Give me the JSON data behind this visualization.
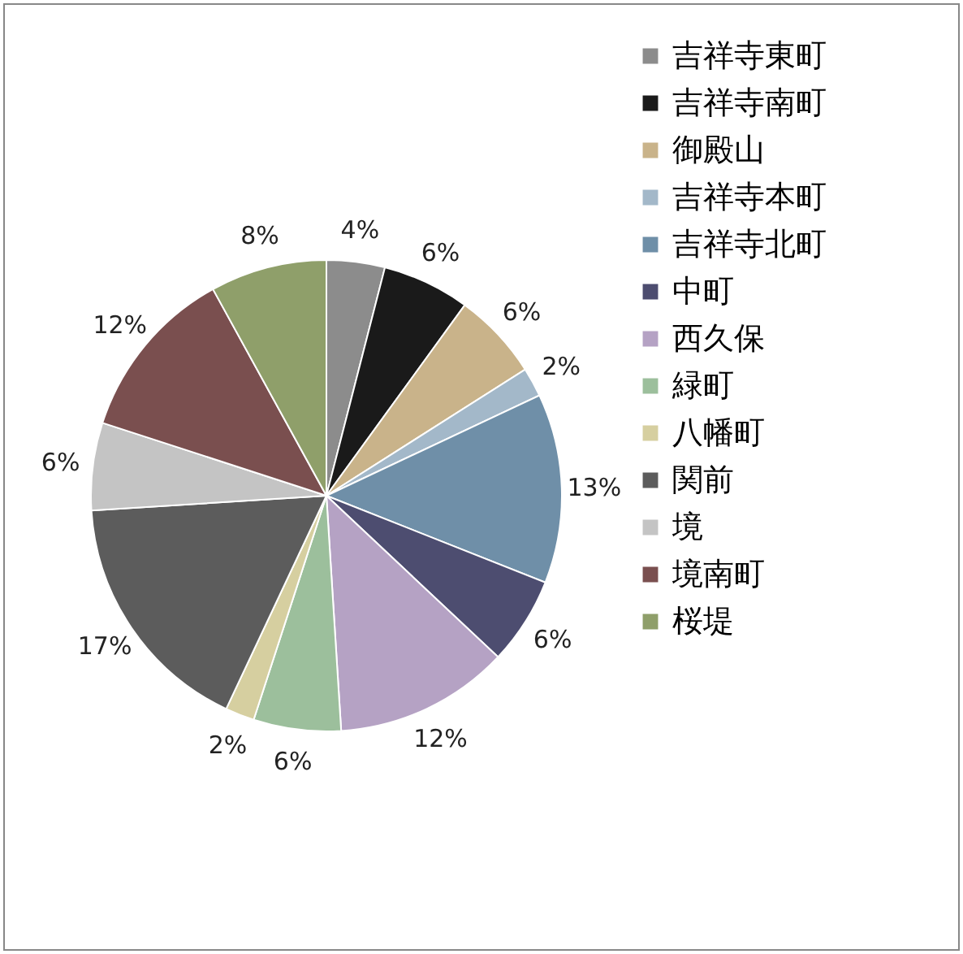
{
  "chart_data": {
    "type": "pie",
    "categories": [
      "吉祥寺東町",
      "吉祥寺南町",
      "御殿山",
      "吉祥寺本町",
      "吉祥寺北町",
      "中町",
      "西久保",
      "緑町",
      "八幡町",
      "関前",
      "境",
      "境南町",
      "桜堤"
    ],
    "values": [
      4,
      6,
      6,
      2,
      13,
      6,
      12,
      6,
      2,
      17,
      6,
      12,
      8
    ],
    "value_labels": [
      "4%",
      "6%",
      "6%",
      "2%",
      "13%",
      "6%",
      "12%",
      "6%",
      "2%",
      "17%",
      "6%",
      "12%",
      "8%"
    ],
    "colors": [
      "#8c8c8c",
      "#1a1a1a",
      "#c9b38a",
      "#a3b8c9",
      "#6f8fa8",
      "#4d4d70",
      "#b5a2c4",
      "#9cbf9c",
      "#d6cfa0",
      "#5c5c5c",
      "#c4c4c4",
      "#7a4f4f",
      "#8f9f6a"
    ],
    "legend": "right"
  }
}
